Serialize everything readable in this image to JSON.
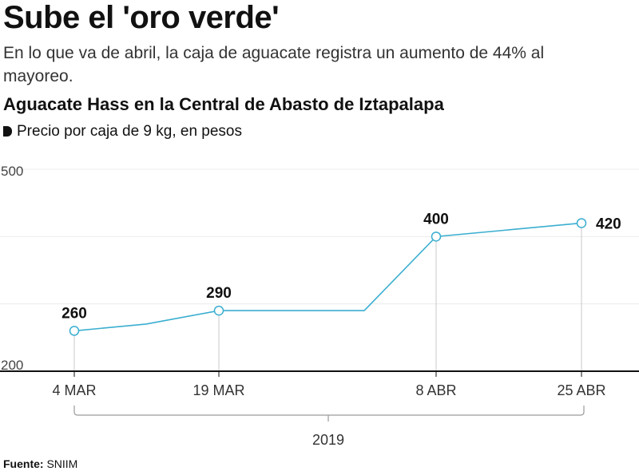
{
  "header": {
    "title": "Sube el 'oro verde'",
    "subtitle": "En lo que va de abril, la caja de aguacate registra un aumento de 44% al mayoreo."
  },
  "chart_data": {
    "type": "line",
    "title": "Aguacate Hass en la Central de Abasto de Iztapalapa",
    "unit_label": "Precio por caja de 9 kg, en pesos",
    "x": [
      "4 MAR",
      "11 MAR",
      "19 MAR",
      "4 ABR",
      "8 ABR",
      "25 ABR"
    ],
    "values": [
      260,
      270,
      290,
      290,
      400,
      420
    ],
    "x_tick_labels": [
      "4 MAR",
      "19 MAR",
      "8 ABR",
      "25 ABR"
    ],
    "data_labels": [
      {
        "x": "4 MAR",
        "value": 260,
        "label": "260"
      },
      {
        "x": "19 MAR",
        "value": 290,
        "label": "290"
      },
      {
        "x": "8 ABR",
        "value": 400,
        "label": "400"
      },
      {
        "x": "25 ABR",
        "value": 420,
        "label": "420"
      }
    ],
    "y_ticks": [
      "500",
      "200"
    ],
    "ylim": [
      200,
      500
    ],
    "year_label": "2019",
    "grid": true,
    "line_color": "#3aaed0"
  },
  "footer": {
    "source_label": "Fuente:",
    "source_value": " SNIIM"
  }
}
